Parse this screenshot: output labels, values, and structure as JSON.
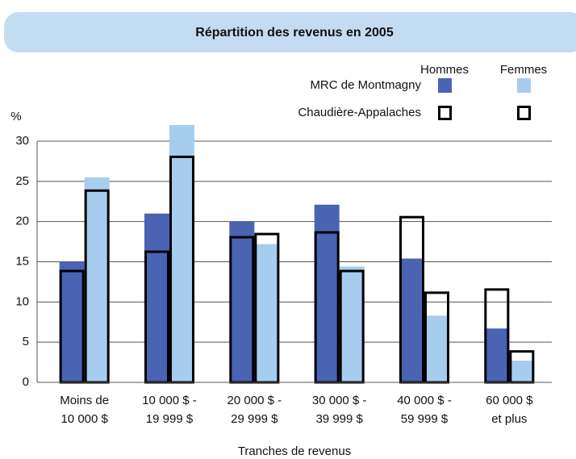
{
  "chart_data": {
    "type": "overlay-bar",
    "title": "Répartition des revenus en 2005",
    "y_label": "%",
    "x_label": "Tranches de revenus",
    "categories": [
      [
        "Moins de",
        "10 000 $"
      ],
      [
        "10 000 $ -",
        "19 999 $"
      ],
      [
        "20 000 $ -",
        "29 999 $"
      ],
      [
        "30 000 $ -",
        "39 999 $"
      ],
      [
        "40 000 $ -",
        "59 999 $"
      ],
      [
        "60 000 $",
        "et plus"
      ]
    ],
    "legend_columns": [
      "Hommes",
      "Femmes"
    ],
    "series": [
      {
        "name": "MRC de Montmagny",
        "style": "fill",
        "groups": [
          {
            "color": "#4a63b3",
            "values": [
              15,
              21,
              20,
              22.1,
              15.4,
              6.7
            ]
          },
          {
            "color": "#a7cdee",
            "values": [
              25.5,
              32,
              17.2,
              14.4,
              8.3,
              2.7
            ]
          }
        ]
      },
      {
        "name": "Chaudière-Appalaches",
        "style": "outline",
        "groups": [
          {
            "color": "#000000",
            "values": [
              14,
              16.4,
              18.2,
              18.8,
              20.7,
              11.7
            ]
          },
          {
            "color": "#000000",
            "values": [
              24,
              28.2,
              18.6,
              14,
              11.3,
              4
            ]
          }
        ]
      }
    ],
    "ylim": [
      0,
      30
    ],
    "yticks": [
      0,
      5,
      10,
      15,
      20,
      25,
      30
    ],
    "grid": true
  }
}
